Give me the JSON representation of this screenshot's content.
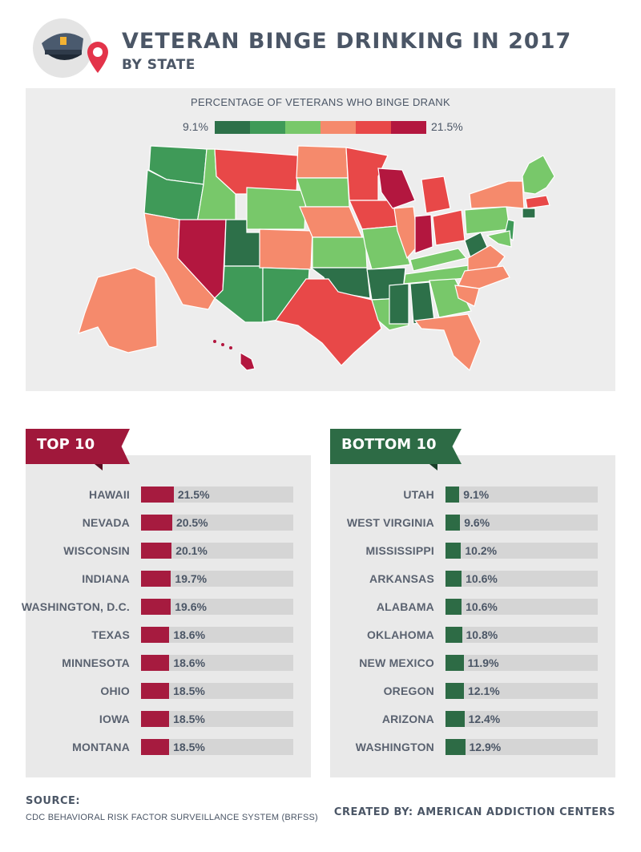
{
  "header": {
    "title": "VETERAN BINGE DRINKING IN 2017",
    "subtitle": "BY STATE",
    "icon": "veteran-cap-location-pin-icon"
  },
  "map": {
    "legend_title": "PERCENTAGE OF VETERANS WHO BINGE DRANK",
    "legend_min": "9.1%",
    "legend_max": "21.5%",
    "legend_colors": [
      "#2d7049",
      "#3f9a58",
      "#78c86a",
      "#f58a6c",
      "#e84848",
      "#b3173f"
    ]
  },
  "chart_data": [
    {
      "type": "bar",
      "title": "TOP 10",
      "color": "#a61b3f",
      "xlim": [
        0,
        100
      ],
      "categories": [
        "HAWAII",
        "NEVADA",
        "WISCONSIN",
        "INDIANA",
        "WASHINGTON, D.C.",
        "TEXAS",
        "MINNESOTA",
        "OHIO",
        "IOWA",
        "MONTANA"
      ],
      "values": [
        21.5,
        20.5,
        20.1,
        19.7,
        19.6,
        18.6,
        18.6,
        18.5,
        18.5,
        18.5
      ],
      "labels": [
        "21.5%",
        "20.5%",
        "20.1%",
        "19.7%",
        "19.6%",
        "18.6%",
        "18.6%",
        "18.5%",
        "18.5%",
        "18.5%"
      ]
    },
    {
      "type": "bar",
      "title": "BOTTOM 10",
      "color": "#2d6b45",
      "xlim": [
        0,
        100
      ],
      "categories": [
        "UTAH",
        "WEST VIRGINIA",
        "MISSISSIPPI",
        "ARKANSAS",
        "ALABAMA",
        "OKLAHOMA",
        "NEW MEXICO",
        "OREGON",
        "ARIZONA",
        "WASHINGTON"
      ],
      "values": [
        9.1,
        9.6,
        10.2,
        10.6,
        10.6,
        10.8,
        11.9,
        12.1,
        12.4,
        12.9
      ],
      "labels": [
        "9.1%",
        "9.6%",
        "10.2%",
        "10.6%",
        "10.6%",
        "10.8%",
        "11.9%",
        "12.1%",
        "12.4%",
        "12.9%"
      ]
    }
  ],
  "footer": {
    "source_heading": "SOURCE:",
    "source_text": "CDC BEHAVIORAL RISK FACTOR SURVEILLANCE SYSTEM (BRFSS)",
    "credit": "CREATED BY: AMERICAN ADDICTION CENTERS"
  }
}
